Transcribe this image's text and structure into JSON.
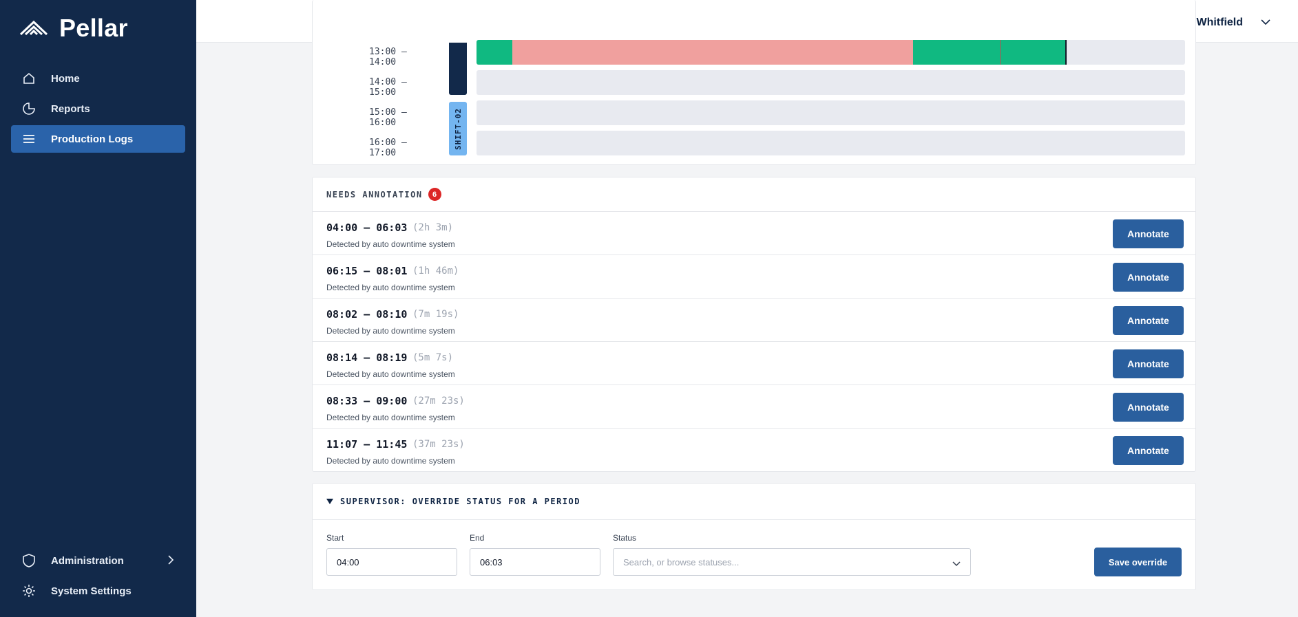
{
  "brand": {
    "name": "Pellar",
    "logo_icon": "chevron-stack-icon"
  },
  "nav": {
    "home": "Home",
    "reports": "Reports",
    "production_logs": "Production Logs",
    "administration": "Administration",
    "system_settings": "System Settings"
  },
  "user": {
    "name": "Dana Whitfield"
  },
  "timeline": {
    "rows": [
      "13:00 – 14:00",
      "14:00 – 15:00",
      "15:00 – 16:00",
      "16:00 – 17:00"
    ],
    "shift_tag": "SHIFT-02"
  },
  "needs_annotation": {
    "title": "NEEDS ANNOTATION",
    "count": "6",
    "button_label": "Annotate",
    "items": [
      {
        "range": "04:00 – 06:03",
        "duration": "(2h 3m)",
        "source": "Detected by auto downtime system"
      },
      {
        "range": "06:15 – 08:01",
        "duration": "(1h 46m)",
        "source": "Detected by auto downtime system"
      },
      {
        "range": "08:02 – 08:10",
        "duration": "(7m 19s)",
        "source": "Detected by auto downtime system"
      },
      {
        "range": "08:14 – 08:19",
        "duration": "(5m 7s)",
        "source": "Detected by auto downtime system"
      },
      {
        "range": "08:33 – 09:00",
        "duration": "(27m 23s)",
        "source": "Detected by auto downtime system"
      },
      {
        "range": "11:07 – 11:45",
        "duration": "(37m 23s)",
        "source": "Detected by auto downtime system"
      }
    ]
  },
  "override": {
    "title": "SUPERVISOR: OVERRIDE STATUS FOR A PERIOD",
    "start_label": "Start",
    "start_value": "04:00",
    "end_label": "End",
    "end_value": "06:03",
    "status_label": "Status",
    "status_placeholder": "Search, or browse statuses...",
    "save_label": "Save override"
  },
  "colors": {
    "sidebar": "#12294a",
    "accent": "#2a63aa",
    "running": "#10b981",
    "down": "#f0a09e",
    "badge": "#dc2626"
  }
}
